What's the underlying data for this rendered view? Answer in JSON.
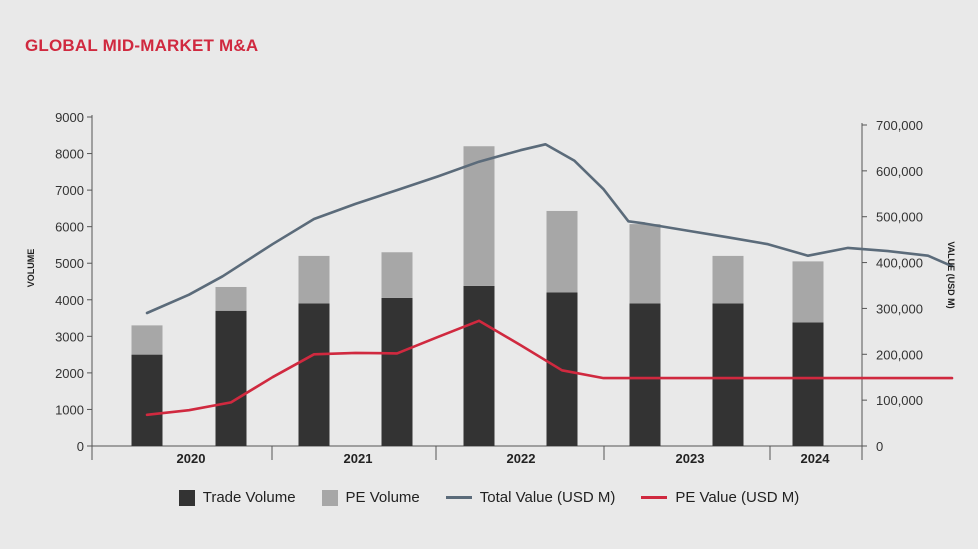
{
  "colors": {
    "title": "#d0293f",
    "trade_volume": "#333333",
    "pe_volume": "#a7a7a7",
    "total_value": "#5b6b7a",
    "pe_value": "#d0293f",
    "axis": "#555555"
  },
  "chart_data": {
    "type": "bar",
    "title": "GLOBAL MID-MARKET M&A",
    "ylabel": "VOLUME",
    "y2label": "VALUE (USD M)",
    "ylim": [
      0,
      9000
    ],
    "y2lim": [
      0,
      700000
    ],
    "yticks": [
      0,
      1000,
      2000,
      3000,
      4000,
      5000,
      6000,
      7000,
      8000,
      9000
    ],
    "yticks_labels": [
      "0",
      "1000",
      "2000",
      "3000",
      "4000",
      "5000",
      "6000",
      "7000",
      "8000",
      "9000"
    ],
    "y2ticks": [
      0,
      100000,
      200000,
      300000,
      400000,
      500000,
      600000,
      700000
    ],
    "y2ticks_labels": [
      "0",
      "100,000",
      "200,000",
      "300,000",
      "400,000",
      "500,000",
      "600,000",
      "700,000"
    ],
    "year_groups": [
      {
        "label": "2020",
        "from": 0,
        "to": 1
      },
      {
        "label": "2021",
        "from": 2,
        "to": 3
      },
      {
        "label": "2022",
        "from": 4,
        "to": 5
      },
      {
        "label": "2023",
        "from": 6,
        "to": 7
      },
      {
        "label": "2024",
        "from": 8,
        "to": 8
      }
    ],
    "bars": [
      {
        "trade": 2500,
        "pe": 800
      },
      {
        "trade": 3700,
        "pe": 650
      },
      {
        "trade": 3900,
        "pe": 1300
      },
      {
        "trade": 4050,
        "pe": 1250
      },
      {
        "trade": 4380,
        "pe": 3820
      },
      {
        "trade": 4200,
        "pe": 2230
      },
      {
        "trade": 3900,
        "pe": 2170
      },
      {
        "trade": 3900,
        "pe": 1300
      },
      {
        "trade": 3380,
        "pe": 1670
      }
    ],
    "series": [
      {
        "name": "Trade Volume",
        "type": "bar",
        "key": "trade"
      },
      {
        "name": "PE Volume",
        "type": "bar",
        "key": "pe"
      },
      {
        "name": "Total Value (USD M)",
        "type": "line",
        "axis": "right",
        "points": [
          [
            0,
            290000
          ],
          [
            0.5,
            330000
          ],
          [
            0.9,
            370000
          ],
          [
            1.5,
            440000
          ],
          [
            2,
            495000
          ],
          [
            2.5,
            528000
          ],
          [
            3,
            558000
          ],
          [
            3.5,
            588000
          ],
          [
            4,
            620000
          ],
          [
            4.5,
            645000
          ],
          [
            4.8,
            658000
          ],
          [
            5.15,
            622000
          ],
          [
            5.5,
            560000
          ],
          [
            5.8,
            490000
          ],
          [
            6,
            485000
          ],
          [
            6.5,
            470000
          ],
          [
            7,
            455000
          ],
          [
            7.5,
            440000
          ],
          [
            8,
            415000
          ],
          [
            8.5,
            432000
          ],
          [
            9,
            425000
          ],
          [
            9.5,
            415000
          ],
          [
            9.8,
            392000
          ]
        ]
      },
      {
        "name": "PE Value (USD M)",
        "type": "line",
        "axis": "right",
        "points": [
          [
            0,
            68000
          ],
          [
            0.5,
            78000
          ],
          [
            1,
            95000
          ],
          [
            1.5,
            150000
          ],
          [
            2,
            200000
          ],
          [
            2.5,
            203000
          ],
          [
            3,
            202000
          ],
          [
            3.5,
            238000
          ],
          [
            4,
            273000
          ],
          [
            4.5,
            220000
          ],
          [
            5,
            165000
          ],
          [
            5.5,
            148000
          ],
          [
            6,
            148000
          ],
          [
            6.5,
            148000
          ],
          [
            7,
            148000
          ],
          [
            7.5,
            148000
          ],
          [
            8,
            148000
          ],
          [
            8.5,
            148000
          ],
          [
            9,
            148000
          ],
          [
            9.8,
            148000
          ]
        ]
      }
    ],
    "legend_position": "bottom",
    "grid": false
  },
  "legend": [
    {
      "label": "Trade Volume",
      "kind": "box",
      "color_key": "trade_volume"
    },
    {
      "label": "PE Volume",
      "kind": "box",
      "color_key": "pe_volume"
    },
    {
      "label": "Total Value (USD M)",
      "kind": "line",
      "color_key": "total_value"
    },
    {
      "label": "PE Value (USD M)",
      "kind": "line",
      "color_key": "pe_value"
    }
  ]
}
